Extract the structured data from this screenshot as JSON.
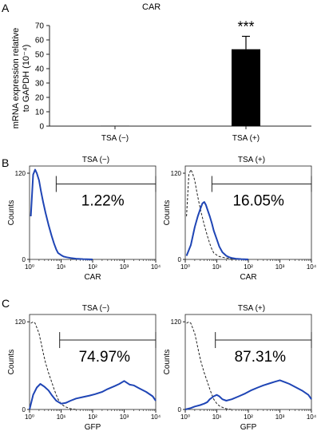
{
  "panel_labels": [
    "A",
    "B",
    "C"
  ],
  "colors": {
    "histogram": "#1f45b5",
    "control": "#222222",
    "bar": "#000000",
    "axis": "#222222"
  },
  "chart_data": [
    {
      "id": "A",
      "type": "bar",
      "title": "CAR",
      "ylabel_lines": [
        "mRNA expression relative",
        "to GAPDH (10⁻⁴)"
      ],
      "categories": [
        "TSA (−)",
        "TSA (+)"
      ],
      "values": [
        0.2,
        53.5
      ],
      "errors": [
        0,
        9
      ],
      "annotation": "***",
      "ylim": [
        0,
        70
      ],
      "yticks": [
        "0",
        "10",
        "20",
        "30",
        "40",
        "50",
        "60",
        "70"
      ]
    },
    {
      "id": "B-left",
      "type": "histogram",
      "title": "TSA (−)",
      "xlabel": "CAR",
      "ylabel": "Counts",
      "xscale": "log",
      "xlim": [
        1,
        10000
      ],
      "ylim": [
        0,
        130
      ],
      "yticks": [
        "0",
        "120"
      ],
      "xticks": [
        "10⁰",
        "10¹",
        "10²",
        "10³",
        "10⁴"
      ],
      "gate": {
        "from": 7,
        "to": 10000,
        "level": 105
      },
      "percentage": "1.22%",
      "series": [
        {
          "style": "solid",
          "x": [
            1.1,
            1.3,
            1.5,
            1.7,
            2,
            2.3,
            2.7,
            3.2,
            4,
            5,
            6,
            7,
            8,
            10,
            12,
            15,
            20,
            30,
            50,
            100
          ],
          "y": [
            60,
            118,
            125,
            120,
            110,
            95,
            80,
            65,
            48,
            33,
            22,
            14,
            9,
            6,
            4,
            3,
            2,
            1,
            0.5,
            0
          ]
        }
      ]
    },
    {
      "id": "B-right",
      "type": "histogram",
      "title": "TSA (+)",
      "xlabel": "CAR",
      "ylabel": "Counts",
      "xscale": "log",
      "xlim": [
        1,
        10000
      ],
      "ylim": [
        0,
        130
      ],
      "yticks": [
        "0",
        "120"
      ],
      "xticks": [
        "10⁰",
        "10¹",
        "10²",
        "10³",
        "10⁴"
      ],
      "gate": {
        "from": 7,
        "to": 10000,
        "level": 105
      },
      "percentage": "16.05%",
      "series": [
        {
          "style": "dashed",
          "x": [
            1.1,
            1.3,
            1.5,
            1.7,
            2,
            2.3,
            2.7,
            3.2,
            4,
            5,
            6,
            7,
            8,
            10,
            12,
            15,
            20,
            30,
            50
          ],
          "y": [
            60,
            118,
            125,
            120,
            110,
            95,
            80,
            65,
            48,
            33,
            22,
            14,
            9,
            6,
            4,
            3,
            2,
            1,
            0
          ]
        },
        {
          "style": "solid",
          "x": [
            1.1,
            1.5,
            2,
            2.5,
            3,
            3.5,
            4,
            4.5,
            5,
            6,
            7,
            8,
            10,
            12,
            15,
            20,
            25,
            30,
            40,
            60,
            100
          ],
          "y": [
            5,
            20,
            45,
            60,
            70,
            78,
            80,
            76,
            70,
            60,
            50,
            40,
            28,
            18,
            10,
            5,
            3,
            2,
            1,
            0.5,
            0
          ]
        }
      ]
    },
    {
      "id": "C-left",
      "type": "histogram",
      "title": "TSA (−)",
      "xlabel": "GFP",
      "ylabel": "Counts",
      "xscale": "log",
      "xlim": [
        1,
        10000
      ],
      "ylim": [
        0,
        130
      ],
      "yticks": [
        "0",
        "120"
      ],
      "xticks": [
        "10⁰",
        "10¹",
        "10²",
        "10³",
        "10⁴"
      ],
      "gate": {
        "from": 9,
        "to": 10000,
        "level": 95
      },
      "percentage": "74.97%",
      "series": [
        {
          "style": "dashed",
          "x": [
            1.1,
            1.3,
            1.5,
            1.7,
            2,
            2.3,
            2.7,
            3.2,
            4,
            5,
            6,
            7,
            8,
            10,
            12,
            15,
            20,
            30
          ],
          "y": [
            118,
            120,
            118,
            112,
            104,
            92,
            78,
            64,
            50,
            38,
            28,
            20,
            14,
            8,
            5,
            3,
            1,
            0
          ]
        },
        {
          "style": "solid",
          "x": [
            1,
            1.3,
            1.7,
            2.2,
            3,
            4,
            5,
            7,
            10,
            14,
            20,
            30,
            50,
            80,
            120,
            200,
            300,
            500,
            700,
            1000,
            1500,
            2000,
            3000,
            5000,
            8000,
            10000
          ],
          "y": [
            0,
            20,
            30,
            35,
            31,
            26,
            20,
            12,
            8,
            9,
            12,
            15,
            17,
            19,
            21,
            24,
            28,
            32,
            35,
            39,
            34,
            33,
            29,
            24,
            18,
            12
          ]
        }
      ]
    },
    {
      "id": "C-right",
      "type": "histogram",
      "title": "TSA (+)",
      "xlabel": "GFP",
      "ylabel": "Counts",
      "xscale": "log",
      "xlim": [
        1,
        10000
      ],
      "ylim": [
        0,
        130
      ],
      "yticks": [
        "0",
        "120"
      ],
      "xticks": [
        "10⁰",
        "10¹",
        "10²",
        "10³",
        "10⁴"
      ],
      "gate": {
        "from": 9,
        "to": 10000,
        "level": 95
      },
      "percentage": "87.31%",
      "series": [
        {
          "style": "dashed",
          "x": [
            1.1,
            1.3,
            1.5,
            1.7,
            2,
            2.3,
            2.7,
            3.2,
            4,
            5,
            6,
            7,
            8,
            10,
            12,
            15,
            20,
            30
          ],
          "y": [
            118,
            120,
            118,
            112,
            104,
            92,
            78,
            64,
            50,
            38,
            28,
            20,
            14,
            8,
            5,
            3,
            1,
            0
          ]
        },
        {
          "style": "solid",
          "x": [
            1,
            1.5,
            2,
            3,
            4,
            5,
            6,
            8,
            10,
            12,
            15,
            20,
            30,
            50,
            80,
            120,
            200,
            300,
            500,
            700,
            1000,
            1500,
            2000,
            3000,
            5000,
            8000,
            10000
          ],
          "y": [
            0,
            2,
            4,
            6,
            8,
            10,
            14,
            18,
            20,
            18,
            14,
            12,
            14,
            18,
            22,
            26,
            30,
            33,
            36,
            38,
            40,
            37,
            35,
            31,
            26,
            20,
            14
          ]
        }
      ]
    }
  ]
}
